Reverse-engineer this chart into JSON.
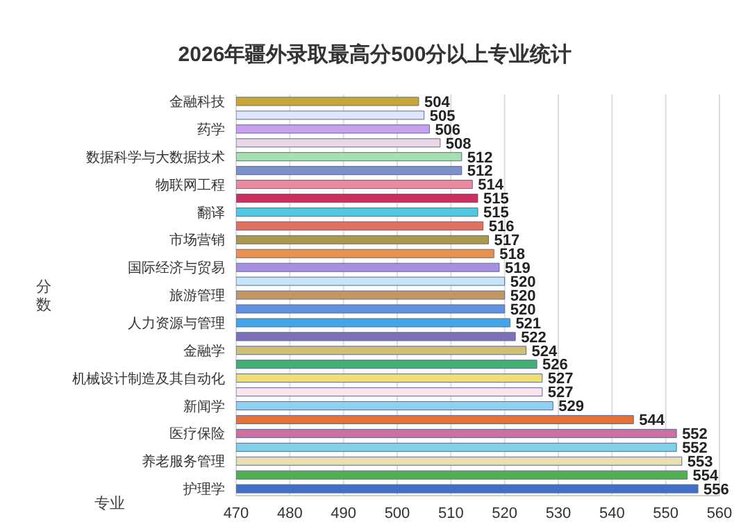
{
  "chart_data": {
    "type": "bar",
    "orientation": "horizontal",
    "title": "2026年疆外录取最高分500分以上专业统计",
    "xlabel": "专业",
    "ylabel": "分数",
    "categories": [
      "金融科技",
      null,
      "药学",
      null,
      "数据科学与大数据技术",
      null,
      "物联网工程",
      null,
      "翻译",
      null,
      "市场营销",
      null,
      "国际经济与贸易",
      null,
      "旅游管理",
      null,
      "人力资源与管理",
      null,
      "金融学",
      null,
      "机械设计制造及其自动化",
      null,
      "新闻学",
      null,
      "医疗保险",
      null,
      "养老服务管理",
      null,
      "护理学"
    ],
    "values": [
      504,
      505,
      506,
      508,
      512,
      512,
      514,
      515,
      515,
      516,
      517,
      518,
      519,
      520,
      520,
      520,
      521,
      522,
      524,
      526,
      527,
      527,
      529,
      544,
      552,
      552,
      553,
      554,
      556
    ],
    "colors": [
      "#c8a832",
      "#dfe6fb",
      "#c9a0f0",
      "#e8d8e8",
      "#a8e0b0",
      "#7b8fc8",
      "#e88aa0",
      "#c83060",
      "#50c8e0",
      "#e07060",
      "#a89850",
      "#e89050",
      "#a890e0",
      "#c8e4f8",
      "#c09860",
      "#6090e0",
      "#40a8e8",
      "#8070b8",
      "#d0c070",
      "#40b070",
      "#f0e070",
      "#fce4ec",
      "#90d0f0",
      "#e87030",
      "#d070a0",
      "#80d0e8",
      "#e8e0b0",
      "#50b050",
      "#4070c8"
    ],
    "xlim": [
      470,
      560
    ],
    "xticks": [
      470,
      480,
      490,
      500,
      510,
      520,
      530,
      540,
      550,
      560
    ],
    "grid": "x",
    "data_labels": true
  }
}
